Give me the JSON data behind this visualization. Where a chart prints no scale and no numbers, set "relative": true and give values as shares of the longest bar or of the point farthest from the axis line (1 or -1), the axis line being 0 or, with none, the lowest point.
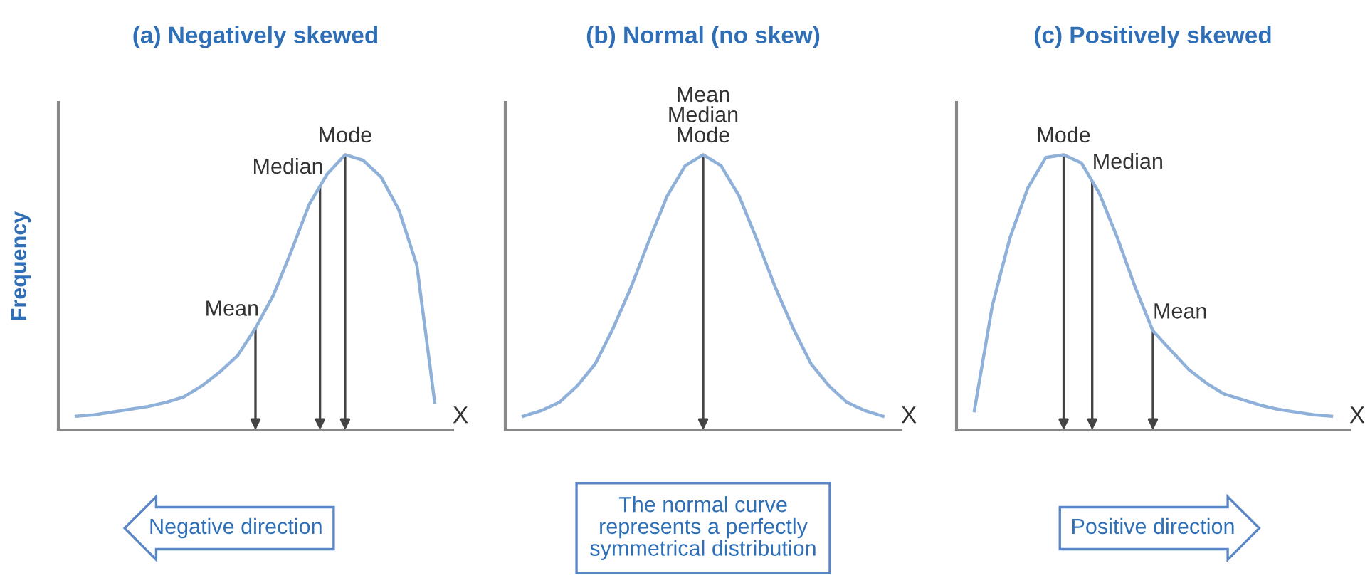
{
  "chart_data": [
    {
      "type": "line",
      "title": "(a) Negatively skewed",
      "ylabel": "Frequency",
      "xlabel": "X",
      "relative": true,
      "line_style": "solid",
      "categories": [
        null,
        null,
        null,
        null,
        null,
        null,
        null,
        null,
        null,
        null,
        null,
        null,
        null,
        null,
        null,
        null,
        null,
        null,
        null,
        null,
        null
      ],
      "series": [
        {
          "color": "#8fb0d8",
          "values": [
            0.05,
            0.055,
            0.065,
            0.075,
            0.085,
            0.1,
            0.12,
            0.16,
            0.21,
            0.27,
            0.37,
            0.49,
            0.65,
            0.82,
            0.93,
            1.0,
            0.98,
            0.92,
            0.8,
            0.6,
            0.1
          ]
        }
      ],
      "annotations": [
        "Mean",
        "Median",
        "Mode",
        "Negative direction"
      ]
    },
    {
      "type": "line",
      "title": "(b) Normal (no skew)",
      "xlabel": "X",
      "relative": true,
      "line_style": "solid",
      "categories": [
        null,
        null,
        null,
        null,
        null,
        null,
        null,
        null,
        null,
        null,
        null,
        null,
        null,
        null,
        null,
        null,
        null,
        null,
        null,
        null,
        null
      ],
      "series": [
        {
          "color": "#8fb0d8",
          "values": [
            0.05,
            0.07,
            0.1,
            0.16,
            0.24,
            0.37,
            0.52,
            0.69,
            0.85,
            0.96,
            1.0,
            0.96,
            0.85,
            0.69,
            0.52,
            0.37,
            0.24,
            0.16,
            0.1,
            0.07,
            0.05
          ]
        }
      ],
      "annotations": [
        "Mean\nMedian\nMode",
        "The normal curve\nrepresents a perfectly\nsymmetrical distribution"
      ]
    },
    {
      "type": "line",
      "title": "(c) Positively skewed",
      "xlabel": "X",
      "relative": true,
      "line_style": "solid",
      "categories": [
        null,
        null,
        null,
        null,
        null,
        null,
        null,
        null,
        null,
        null,
        null,
        null,
        null,
        null,
        null,
        null,
        null,
        null,
        null,
        null,
        null
      ],
      "series": [
        {
          "color": "#8fb0d8",
          "values": [
            0.07,
            0.45,
            0.7,
            0.88,
            0.99,
            1.0,
            0.97,
            0.86,
            0.7,
            0.52,
            0.36,
            0.29,
            0.22,
            0.17,
            0.13,
            0.11,
            0.09,
            0.075,
            0.065,
            0.055,
            0.05
          ]
        }
      ],
      "annotations": [
        "Mode",
        "Median",
        "Mean",
        "Positive direction"
      ]
    }
  ]
}
